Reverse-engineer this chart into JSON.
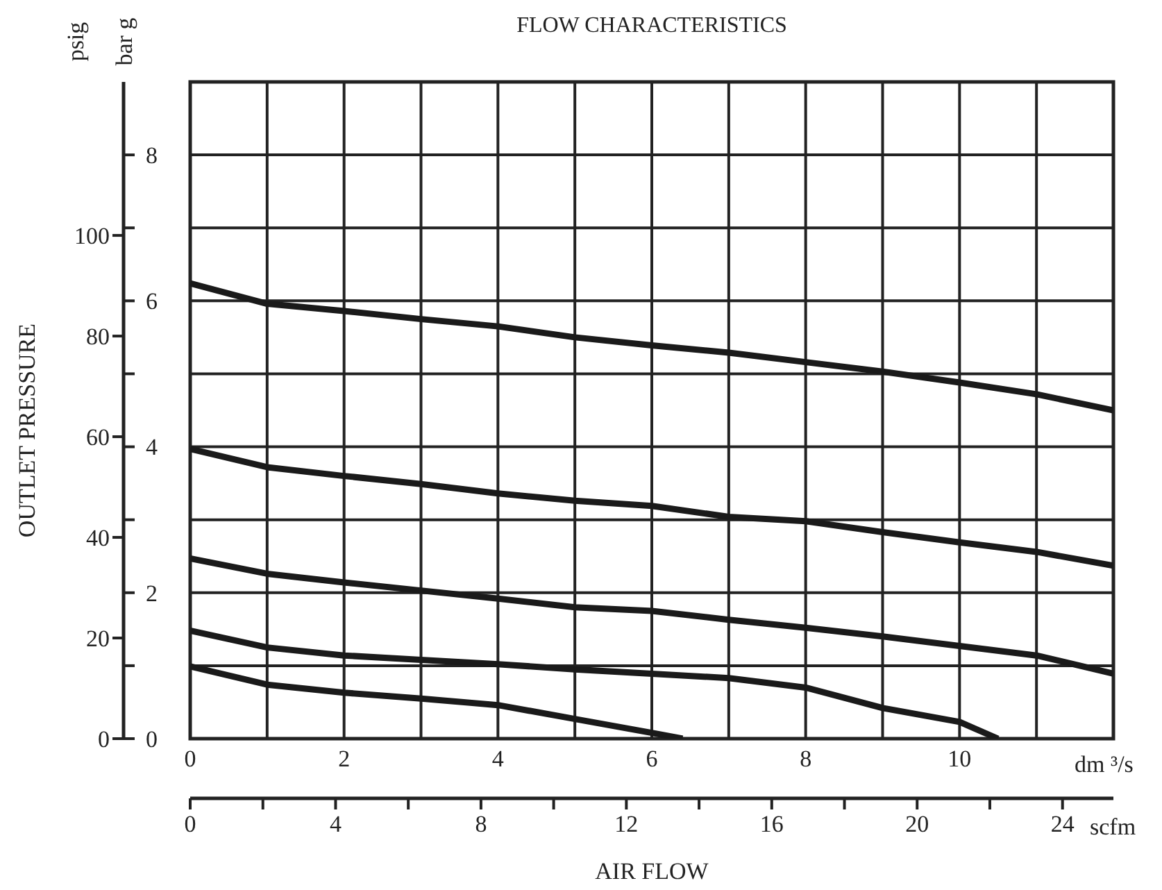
{
  "chart_data": {
    "type": "line",
    "title": "FLOW CHARACTERISTICS",
    "xlabel": "AIR FLOW",
    "y2label": "OUTLET PRESSURE",
    "annotations": [
      "psig",
      "bar g",
      "dm ³/s",
      "scfm"
    ],
    "xlim": [
      0,
      12
    ],
    "xticks": [
      0,
      {
        "value": 1,
        "label": null
      },
      2,
      {
        "value": 3,
        "label": null
      },
      4,
      {
        "value": 5,
        "label": null
      },
      6,
      {
        "value": 7,
        "label": null
      },
      8,
      {
        "value": 9,
        "label": null
      },
      10,
      {
        "value": 11,
        "label": null
      },
      {
        "value": 12,
        "label": null
      }
    ],
    "x2lim": [
      0,
      25.4
    ],
    "x2ticks": [
      0,
      4,
      8,
      12,
      16,
      20,
      24
    ],
    "ylim": [
      0,
      9
    ],
    "yticks": [
      0,
      {
        "value": 1,
        "label": null
      },
      2,
      {
        "value": 3,
        "label": null
      },
      4,
      {
        "value": 5,
        "label": null
      },
      6,
      {
        "value": 7,
        "label": null
      },
      8
    ],
    "y2lim": [
      0,
      130.5
    ],
    "y2ticks": [
      0,
      20,
      40,
      60,
      80,
      100
    ],
    "grid": true,
    "marker": "none",
    "line_style": "solid",
    "series": [
      {
        "color": "#1a1a1a",
        "x": [
          0,
          1,
          2,
          3,
          4,
          5,
          6,
          7,
          8,
          9,
          10,
          11,
          12
        ],
        "values": [
          6.24,
          5.96,
          5.86,
          5.75,
          5.65,
          5.5,
          5.39,
          5.29,
          5.16,
          5.03,
          4.88,
          4.72,
          4.5
        ]
      },
      {
        "color": "#1a1a1a",
        "x": [
          0,
          1,
          2,
          3,
          4,
          5,
          6,
          7,
          8,
          9,
          10,
          11,
          12
        ],
        "values": [
          3.97,
          3.72,
          3.6,
          3.49,
          3.36,
          3.26,
          3.19,
          3.04,
          2.98,
          2.83,
          2.69,
          2.56,
          2.37
        ]
      },
      {
        "color": "#1a1a1a",
        "x": [
          0,
          1,
          2,
          3,
          4,
          5,
          6,
          7,
          8,
          9,
          10,
          11,
          12
        ],
        "values": [
          2.47,
          2.26,
          2.14,
          2.03,
          1.92,
          1.8,
          1.75,
          1.63,
          1.52,
          1.4,
          1.27,
          1.14,
          0.89
        ]
      },
      {
        "color": "#1a1a1a",
        "x": [
          0,
          1,
          2,
          3,
          4,
          5,
          6,
          7,
          8,
          9,
          10,
          10.5
        ],
        "values": [
          1.48,
          1.25,
          1.14,
          1.08,
          1.02,
          0.95,
          0.89,
          0.83,
          0.7,
          0.42,
          0.23,
          0
        ]
      },
      {
        "color": "#1a1a1a",
        "x": [
          0,
          1,
          2,
          3,
          4,
          5,
          6,
          6.4
        ],
        "values": [
          0.99,
          0.74,
          0.63,
          0.55,
          0.46,
          0.27,
          0.08,
          0
        ]
      }
    ]
  }
}
